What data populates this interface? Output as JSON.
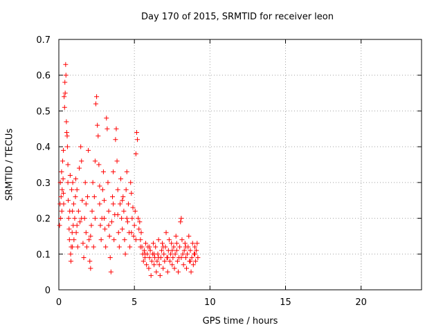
{
  "chart_data": {
    "type": "scatter",
    "title": "Day 170 of 2015, SRMTID for receiver leon",
    "xlabel": "GPS time / hours",
    "ylabel": "SRMTID / TECUs",
    "xlim": [
      0,
      24
    ],
    "ylim": [
      0,
      0.7
    ],
    "xticks": [
      0,
      5,
      10,
      15,
      20
    ],
    "yticks": [
      0,
      0.1,
      0.2,
      0.3,
      0.4,
      0.5,
      0.6,
      0.7
    ],
    "xtick_labels": [
      "0",
      "5",
      "10",
      "15",
      "20"
    ],
    "ytick_labels": [
      "0",
      "0.1",
      "0.2",
      "0.3",
      "0.4",
      "0.5",
      "0.6",
      "0.7"
    ],
    "grid": true,
    "marker": "+",
    "color": "#ff0000",
    "series": [
      {
        "name": "SRMTID",
        "points": [
          [
            0.05,
            0.18
          ],
          [
            0.08,
            0.24
          ],
          [
            0.1,
            0.3
          ],
          [
            0.12,
            0.2
          ],
          [
            0.15,
            0.26
          ],
          [
            0.18,
            0.33
          ],
          [
            0.2,
            0.22
          ],
          [
            0.22,
            0.28
          ],
          [
            0.25,
            0.36
          ],
          [
            0.28,
            0.31
          ],
          [
            0.3,
            0.39
          ],
          [
            0.32,
            0.24
          ],
          [
            0.35,
            0.54
          ],
          [
            0.38,
            0.51
          ],
          [
            0.4,
            0.58
          ],
          [
            0.42,
            0.55
          ],
          [
            0.45,
            0.63
          ],
          [
            0.47,
            0.6
          ],
          [
            0.5,
            0.47
          ],
          [
            0.52,
            0.44
          ],
          [
            0.55,
            0.43
          ],
          [
            0.57,
            0.4
          ],
          [
            0.6,
            0.3
          ],
          [
            0.62,
            0.25
          ],
          [
            0.65,
            0.2
          ],
          [
            0.68,
            0.17
          ],
          [
            0.7,
            0.14
          ],
          [
            0.72,
            0.22
          ],
          [
            0.75,
            0.32
          ],
          [
            0.78,
            0.1
          ],
          [
            0.8,
            0.08
          ],
          [
            0.82,
            0.12
          ],
          [
            0.85,
            0.28
          ],
          [
            0.88,
            0.16
          ],
          [
            0.9,
            0.22
          ],
          [
            0.92,
            0.3
          ],
          [
            0.95,
            0.18
          ],
          [
            0.98,
            0.24
          ],
          [
            1.0,
            0.14
          ],
          [
            1.05,
            0.2
          ],
          [
            1.1,
            0.26
          ],
          [
            1.12,
            0.31
          ],
          [
            1.15,
            0.16
          ],
          [
            1.2,
            0.28
          ],
          [
            1.25,
            0.12
          ],
          [
            1.3,
            0.22
          ],
          [
            1.35,
            0.34
          ],
          [
            1.4,
            0.19
          ],
          [
            1.45,
            0.4
          ],
          [
            1.5,
            0.36
          ],
          [
            1.55,
            0.25
          ],
          [
            1.6,
            0.13
          ],
          [
            1.65,
            0.09
          ],
          [
            1.7,
            0.2
          ],
          [
            1.75,
            0.3
          ],
          [
            1.8,
            0.16
          ],
          [
            1.85,
            0.12
          ],
          [
            1.9,
            0.26
          ],
          [
            1.95,
            0.39
          ],
          [
            2.0,
            0.14
          ],
          [
            2.05,
            0.08
          ],
          [
            2.1,
            0.06
          ],
          [
            2.15,
            0.18
          ],
          [
            2.2,
            0.22
          ],
          [
            2.25,
            0.3
          ],
          [
            2.3,
            0.12
          ],
          [
            2.35,
            0.26
          ],
          [
            2.4,
            0.36
          ],
          [
            2.45,
            0.52
          ],
          [
            2.5,
            0.54
          ],
          [
            2.55,
            0.46
          ],
          [
            2.6,
            0.43
          ],
          [
            2.65,
            0.35
          ],
          [
            2.7,
            0.24
          ],
          [
            2.75,
            0.18
          ],
          [
            2.8,
            0.14
          ],
          [
            2.85,
            0.2
          ],
          [
            2.9,
            0.28
          ],
          [
            2.95,
            0.33
          ],
          [
            3.0,
            0.25
          ],
          [
            3.05,
            0.17
          ],
          [
            3.1,
            0.12
          ],
          [
            3.15,
            0.48
          ],
          [
            3.2,
            0.45
          ],
          [
            3.25,
            0.3
          ],
          [
            3.3,
            0.22
          ],
          [
            3.35,
            0.15
          ],
          [
            3.4,
            0.09
          ],
          [
            3.45,
            0.05
          ],
          [
            3.5,
            0.19
          ],
          [
            3.55,
            0.26
          ],
          [
            3.6,
            0.33
          ],
          [
            3.65,
            0.14
          ],
          [
            3.7,
            0.21
          ],
          [
            3.75,
            0.42
          ],
          [
            3.8,
            0.45
          ],
          [
            3.85,
            0.36
          ],
          [
            3.9,
            0.28
          ],
          [
            3.95,
            0.16
          ],
          [
            4.0,
            0.12
          ],
          [
            4.05,
            0.24
          ],
          [
            4.1,
            0.31
          ],
          [
            4.15,
            0.2
          ],
          [
            4.2,
            0.17
          ],
          [
            4.25,
            0.26
          ],
          [
            4.3,
            0.22
          ],
          [
            4.35,
            0.14
          ],
          [
            4.4,
            0.1
          ],
          [
            4.45,
            0.28
          ],
          [
            4.5,
            0.33
          ],
          [
            4.55,
            0.19
          ],
          [
            4.6,
            0.24
          ],
          [
            4.65,
            0.16
          ],
          [
            4.7,
            0.12
          ],
          [
            4.75,
            0.3
          ],
          [
            4.8,
            0.27
          ],
          [
            4.85,
            0.2
          ],
          [
            4.9,
            0.23
          ],
          [
            4.95,
            0.15
          ],
          [
            5.0,
            0.18
          ],
          [
            5.05,
            0.22
          ],
          [
            5.1,
            0.38
          ],
          [
            5.15,
            0.44
          ],
          [
            5.2,
            0.42
          ],
          [
            5.25,
            0.2
          ],
          [
            5.3,
            0.17
          ],
          [
            5.35,
            0.19
          ],
          [
            5.4,
            0.14
          ],
          [
            5.45,
            0.16
          ],
          [
            5.5,
            0.12
          ],
          [
            5.55,
            0.1
          ],
          [
            5.6,
            0.08
          ],
          [
            5.65,
            0.11
          ],
          [
            5.7,
            0.09
          ],
          [
            5.75,
            0.13
          ],
          [
            5.8,
            0.07
          ],
          [
            5.85,
            0.1
          ],
          [
            5.9,
            0.12
          ],
          [
            5.95,
            0.06
          ],
          [
            6.0,
            0.09
          ],
          [
            6.05,
            0.11
          ],
          [
            6.1,
            0.04
          ],
          [
            6.15,
            0.08
          ],
          [
            6.2,
            0.1
          ],
          [
            6.25,
            0.13
          ],
          [
            6.3,
            0.07
          ],
          [
            6.35,
            0.09
          ],
          [
            6.4,
            0.12
          ],
          [
            6.45,
            0.05
          ],
          [
            6.5,
            0.08
          ],
          [
            6.55,
            0.1
          ],
          [
            6.6,
            0.14
          ],
          [
            6.65,
            0.07
          ],
          [
            6.7,
            0.04
          ],
          [
            6.75,
            0.09
          ],
          [
            6.8,
            0.11
          ],
          [
            6.85,
            0.13
          ],
          [
            6.9,
            0.06
          ],
          [
            6.95,
            0.1
          ],
          [
            7.0,
            0.08
          ],
          [
            7.05,
            0.12
          ],
          [
            7.1,
            0.16
          ],
          [
            7.15,
            0.09
          ],
          [
            7.2,
            0.05
          ],
          [
            7.25,
            0.11
          ],
          [
            7.3,
            0.14
          ],
          [
            7.35,
            0.08
          ],
          [
            7.4,
            0.1
          ],
          [
            7.45,
            0.13
          ],
          [
            7.5,
            0.07
          ],
          [
            7.55,
            0.09
          ],
          [
            7.6,
            0.12
          ],
          [
            7.65,
            0.06
          ],
          [
            7.7,
            0.1
          ],
          [
            7.75,
            0.15
          ],
          [
            7.8,
            0.11
          ],
          [
            7.85,
            0.08
          ],
          [
            7.9,
            0.05
          ],
          [
            7.95,
            0.09
          ],
          [
            8.0,
            0.12
          ],
          [
            8.05,
            0.19
          ],
          [
            8.1,
            0.2
          ],
          [
            8.15,
            0.14
          ],
          [
            8.2,
            0.1
          ],
          [
            8.25,
            0.07
          ],
          [
            8.3,
            0.11
          ],
          [
            8.35,
            0.13
          ],
          [
            8.4,
            0.09
          ],
          [
            8.45,
            0.06
          ],
          [
            8.5,
            0.1
          ],
          [
            8.55,
            0.12
          ],
          [
            8.6,
            0.15
          ],
          [
            8.65,
            0.08
          ],
          [
            8.7,
            0.11
          ],
          [
            8.75,
            0.05
          ],
          [
            8.8,
            0.09
          ],
          [
            8.85,
            0.13
          ],
          [
            8.9,
            0.07
          ],
          [
            8.95,
            0.1
          ],
          [
            9.0,
            0.12
          ],
          [
            9.05,
            0.08
          ],
          [
            9.1,
            0.11
          ],
          [
            9.15,
            0.13
          ],
          [
            9.2,
            0.09
          ],
          [
            0.3,
            0.27
          ],
          [
            0.6,
            0.35
          ],
          [
            0.9,
            0.12
          ],
          [
            1.2,
            0.18
          ],
          [
            1.5,
            0.2
          ],
          [
            1.8,
            0.24
          ],
          [
            2.1,
            0.15
          ],
          [
            2.4,
            0.2
          ],
          [
            2.7,
            0.29
          ],
          [
            3.0,
            0.2
          ],
          [
            3.3,
            0.18
          ],
          [
            3.6,
            0.24
          ],
          [
            3.9,
            0.21
          ],
          [
            4.2,
            0.25
          ],
          [
            4.5,
            0.2
          ],
          [
            4.8,
            0.16
          ],
          [
            5.1,
            0.14
          ],
          [
            5.4,
            0.12
          ],
          [
            5.7,
            0.1
          ],
          [
            6.0,
            0.12
          ],
          [
            6.3,
            0.1
          ],
          [
            6.6,
            0.09
          ],
          [
            6.9,
            0.12
          ],
          [
            7.2,
            0.09
          ],
          [
            7.5,
            0.11
          ],
          [
            7.8,
            0.13
          ],
          [
            8.1,
            0.09
          ],
          [
            8.4,
            0.12
          ],
          [
            8.7,
            0.08
          ],
          [
            9.0,
            0.1
          ]
        ]
      }
    ]
  }
}
